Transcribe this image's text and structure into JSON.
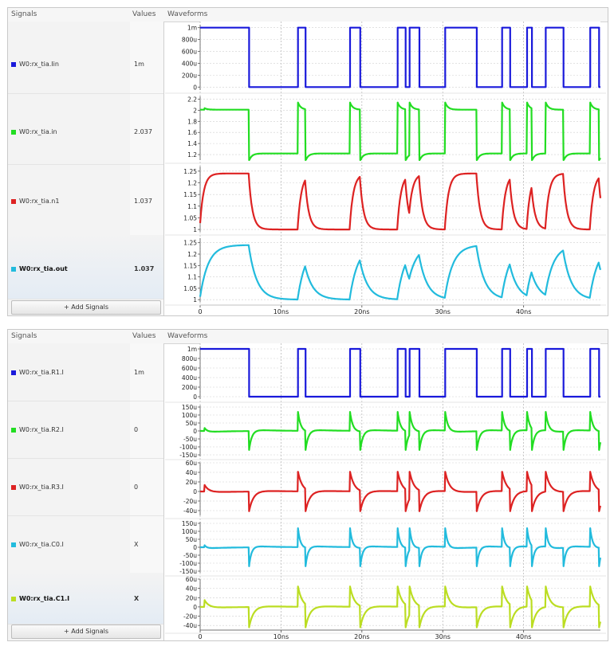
{
  "headers": {
    "signals": "Signals",
    "values": "Values",
    "waveforms": "Waveforms"
  },
  "add_signals": "+ Add Signals",
  "time_axis": {
    "ticks": [
      "0",
      "10ns",
      "20ns",
      "30ns",
      "40ns"
    ],
    "values": [
      0,
      10,
      20,
      30,
      40
    ],
    "max": 49.5
  },
  "digital_edges": [
    0,
    6,
    12.1,
    13,
    18.5,
    19.8,
    24.4,
    25.4,
    25.9,
    27.1,
    30.3,
    34.2,
    37.3,
    38.3,
    40.4,
    41,
    42.7,
    44.9,
    48.2,
    49.3
  ],
  "panels": [
    {
      "tracks": [
        {
          "name": "W0:rx_tia.Iin",
          "value": "1m",
          "color": "#1a1adb",
          "kind": "digital",
          "lo": 0,
          "hi": 0.001,
          "ticks": [
            "1m",
            "800u",
            "600u",
            "400u",
            "200u",
            "0"
          ],
          "tickvals": [
            0.001,
            0.0008,
            0.0006,
            0.0004,
            0.0002,
            0
          ],
          "range": [
            -5e-05,
            0.00105
          ]
        },
        {
          "name": "W0:rx_tia.in",
          "value": "2.037",
          "color": "#22dd22",
          "kind": "input",
          "lo": 1.22,
          "hi": 2.01,
          "spike": 0.13,
          "ticks": [
            "2.2",
            "2",
            "1.8",
            "1.6",
            "1.4",
            "1.2"
          ],
          "tickvals": [
            2.2,
            2,
            1.8,
            1.6,
            1.4,
            1.2
          ],
          "range": [
            1.1,
            2.25
          ]
        },
        {
          "name": "W0:rx_tia.n1",
          "value": "1.037",
          "color": "#dd2222",
          "kind": "rc",
          "lo": 1.0,
          "hi": 1.24,
          "tau": 0.45,
          "ticks": [
            "1.25",
            "1.2",
            "1.15",
            "1.1",
            "1.05",
            "1"
          ],
          "tickvals": [
            1.25,
            1.2,
            1.15,
            1.1,
            1.05,
            1
          ],
          "range": [
            0.99,
            1.27
          ]
        },
        {
          "name": "W0:rx_tia.out",
          "value": "1.037",
          "color": "#22bbdd",
          "kind": "rc",
          "lo": 1.0,
          "hi": 1.24,
          "tau": 1.0,
          "bold": true,
          "ticks": [
            "1.25",
            "1.2",
            "1.15",
            "1.1",
            "1.05",
            "1"
          ],
          "tickvals": [
            1.25,
            1.2,
            1.15,
            1.1,
            1.05,
            1
          ],
          "range": [
            0.99,
            1.27
          ]
        }
      ]
    },
    {
      "tracks": [
        {
          "name": "W0:rx_tia.R1.I",
          "value": "1m",
          "color": "#1a1adb",
          "kind": "digital",
          "lo": 0,
          "hi": 0.001,
          "ticks": [
            "1m",
            "800u",
            "600u",
            "400u",
            "200u",
            "0"
          ],
          "tickvals": [
            0.001,
            0.0008,
            0.0006,
            0.0004,
            0.0002,
            0
          ],
          "range": [
            -5e-05,
            0.00105
          ]
        },
        {
          "name": "W0:rx_tia.R2.I",
          "value": "0",
          "color": "#22dd22",
          "kind": "spike",
          "amp": 0.00013,
          "tau": 0.35,
          "ticks": [
            "150u",
            "100u",
            "50u",
            "0",
            "-50u",
            "-100u",
            "-150u"
          ],
          "tickvals": [
            0.00015,
            0.0001,
            5e-05,
            0,
            -5e-05,
            -0.0001,
            -0.00015
          ],
          "range": [
            -0.00016,
            0.00016
          ]
        },
        {
          "name": "W0:rx_tia.R3.I",
          "value": "0",
          "color": "#dd2222",
          "kind": "spike",
          "amp": 4.5e-05,
          "tau": 0.55,
          "ticks": [
            "60u",
            "40u",
            "20u",
            "0",
            "-20u",
            "-40u"
          ],
          "tickvals": [
            6e-05,
            4e-05,
            2e-05,
            0,
            -2e-05,
            -4e-05
          ],
          "range": [
            -5e-05,
            6e-05
          ]
        },
        {
          "name": "W0:rx_tia.C0.I",
          "value": "X",
          "color": "#22bbdd",
          "kind": "spike",
          "amp": 0.00013,
          "tau": 0.3,
          "ticks": [
            "150u",
            "100u",
            "50u",
            "0",
            "-50u",
            "-100u",
            "-150u"
          ],
          "tickvals": [
            0.00015,
            0.0001,
            5e-05,
            0,
            -5e-05,
            -0.0001,
            -0.00015
          ],
          "range": [
            -0.00016,
            0.00016
          ]
        },
        {
          "name": "W0:rx_tia.C1.I",
          "value": "X",
          "color": "#bbdd22",
          "kind": "spike",
          "amp": 4.8e-05,
          "tau": 0.55,
          "bold": true,
          "ticks": [
            "60u",
            "40u",
            "20u",
            "0",
            "-20u",
            "-40u"
          ],
          "tickvals": [
            6e-05,
            4e-05,
            2e-05,
            0,
            -2e-05,
            -4e-05
          ],
          "range": [
            -5e-05,
            6e-05
          ]
        }
      ]
    }
  ]
}
